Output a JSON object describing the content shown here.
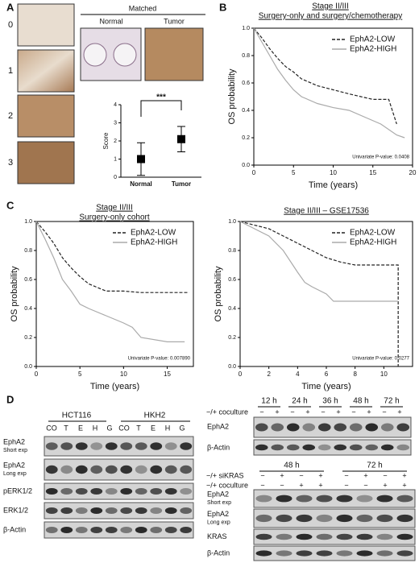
{
  "panel_letters": [
    "A",
    "B",
    "C",
    "D"
  ],
  "panel_a": {
    "score_labels": [
      "0",
      "1",
      "2",
      "3"
    ],
    "matched": "Matched",
    "matched_labels": [
      "Normal",
      "Tumor"
    ]
  },
  "chart_data": [
    {
      "type": "errorbar",
      "y_label": "Score",
      "annotation": "***",
      "categories": [
        "Normal",
        "Tumor"
      ],
      "values": [
        1,
        2.1
      ],
      "errors": [
        0.9,
        0.7
      ],
      "color": "#000000",
      "ylim": [
        0,
        4
      ],
      "yticks": [
        0,
        1,
        2,
        3,
        4
      ]
    },
    {
      "type": "line",
      "title": "Stage II/III",
      "subtitle": "Surgery-only and surgery/chemotherapy",
      "x_label": "Time (years)",
      "y_label": "OS probability",
      "annotation": "Univariate P-value: 0.0408",
      "legend": "upper right",
      "xlim": [
        0,
        20
      ],
      "xticks": [
        0,
        5,
        10,
        15,
        20
      ],
      "ylim": [
        0,
        1
      ],
      "yticks": [
        {
          "value": 0,
          "label": "0.0"
        },
        0.2,
        0.4,
        0.6,
        0.8,
        {
          "value": 1,
          "label": "1.0"
        }
      ],
      "series": [
        {
          "name": "EphA2-LOW",
          "color": "#222222",
          "dashed": true,
          "x": [
            0,
            1,
            2,
            3,
            4,
            5,
            6,
            8,
            10,
            12,
            15,
            17,
            18
          ],
          "values": [
            1,
            0.93,
            0.85,
            0.78,
            0.72,
            0.68,
            0.63,
            0.58,
            0.55,
            0.52,
            0.48,
            0.48,
            0.3
          ]
        },
        {
          "name": "EphA2-HIGH",
          "color": "#aaaaaa",
          "dashed": false,
          "x": [
            0,
            1,
            2,
            3,
            4,
            5,
            6,
            8,
            10,
            12,
            14,
            16,
            18,
            19
          ],
          "values": [
            1,
            0.9,
            0.8,
            0.7,
            0.62,
            0.55,
            0.5,
            0.45,
            0.42,
            0.4,
            0.35,
            0.3,
            0.22,
            0.2
          ]
        }
      ]
    },
    {
      "type": "line",
      "title": "Stage II/III",
      "subtitle": "Surgery-only cohort",
      "x_label": "Time (years)",
      "y_label": "OS probability",
      "annotation": "Univariate P-value: 0.007890",
      "legend": "upper right",
      "xlim": [
        0,
        18
      ],
      "xticks": [
        0,
        5,
        10,
        15
      ],
      "ylim": [
        0,
        1
      ],
      "yticks": [
        {
          "value": 0,
          "label": "0.0"
        },
        0.2,
        0.4,
        0.6,
        0.8,
        {
          "value": 1,
          "label": "1.0"
        }
      ],
      "series": [
        {
          "name": "EphA2-LOW",
          "color": "#222222",
          "dashed": true,
          "x": [
            0,
            1,
            2,
            3,
            4,
            5,
            6,
            8,
            10,
            12,
            17.5
          ],
          "values": [
            1,
            0.93,
            0.85,
            0.75,
            0.68,
            0.62,
            0.57,
            0.52,
            0.52,
            0.51,
            0.51
          ]
        },
        {
          "name": "EphA2-HIGH",
          "color": "#aaaaaa",
          "dashed": false,
          "x": [
            0,
            1,
            2,
            3,
            4,
            5,
            6,
            8,
            10,
            11,
            12,
            15,
            17
          ],
          "values": [
            1,
            0.88,
            0.75,
            0.6,
            0.52,
            0.43,
            0.4,
            0.35,
            0.3,
            0.27,
            0.2,
            0.17,
            0.17
          ]
        }
      ]
    },
    {
      "type": "line",
      "title": "Stage II/III – GSE17536",
      "x_label": "Time (years)",
      "y_label": "OS probability",
      "annotation": "Univariate P-value: 0.0277",
      "legend": "upper right",
      "xlim": [
        0,
        12
      ],
      "xticks": [
        0,
        2,
        4,
        6,
        8,
        10
      ],
      "ylim": [
        0,
        1
      ],
      "yticks": [
        {
          "value": 0,
          "label": "0.0"
        },
        0.2,
        0.4,
        0.6,
        0.8,
        {
          "value": 1,
          "label": "1.0"
        }
      ],
      "series": [
        {
          "name": "EphA2-LOW",
          "color": "#222222",
          "dashed": true,
          "x": [
            0,
            2,
            3,
            4,
            5,
            6,
            7,
            8,
            9,
            10,
            11,
            11
          ],
          "values": [
            1,
            0.95,
            0.9,
            0.85,
            0.8,
            0.75,
            0.72,
            0.7,
            0.7,
            0.7,
            0.7,
            0
          ]
        },
        {
          "name": "EphA2-HIGH",
          "color": "#aaaaaa",
          "dashed": false,
          "x": [
            0,
            2,
            3,
            4,
            4.5,
            5,
            6,
            6.5,
            8,
            10,
            11
          ],
          "values": [
            1,
            0.9,
            0.8,
            0.65,
            0.58,
            0.55,
            0.5,
            0.45,
            0.45,
            0.45,
            0.45
          ]
        }
      ]
    }
  ],
  "panel_d": {
    "left": {
      "cell_lines": [
        "HCT116",
        "HKH2"
      ],
      "lanes": [
        "CO",
        "T",
        "E",
        "H",
        "G",
        "CO",
        "T",
        "E",
        "H",
        "G"
      ],
      "rows": [
        [
          "EphA2",
          "Short exp"
        ],
        [
          "EphA2",
          "Long exp"
        ],
        [
          "pERK1/2"
        ],
        [
          "ERK1/2"
        ],
        [
          "β-Actin"
        ]
      ]
    },
    "right_top": {
      "times": [
        "12 h",
        "24 h",
        "36 h",
        "48 h",
        "72 h"
      ],
      "condition": "−/+ coculture",
      "signs": [
        "−",
        "+",
        "−",
        "+",
        "−",
        "+",
        "−",
        "+",
        "−",
        "+"
      ],
      "rows": [
        "EphA2",
        "β-Actin"
      ]
    },
    "right_bottom": {
      "times": [
        "48 h",
        "72 h"
      ],
      "conditions": [
        "−/+ siKRAS",
        "−/+ coculture"
      ],
      "sikras_signs": [
        "−",
        "+",
        "−",
        "+",
        "−",
        "+",
        "−",
        "+"
      ],
      "coculture_signs": [
        "−",
        "−",
        "+",
        "+",
        "−",
        "−",
        "+",
        "+"
      ],
      "rows": [
        [
          "EphA2",
          "Short exp"
        ],
        [
          "EphA2",
          "Long exp"
        ],
        [
          "KRAS"
        ],
        [
          "β-Actin"
        ]
      ]
    }
  }
}
